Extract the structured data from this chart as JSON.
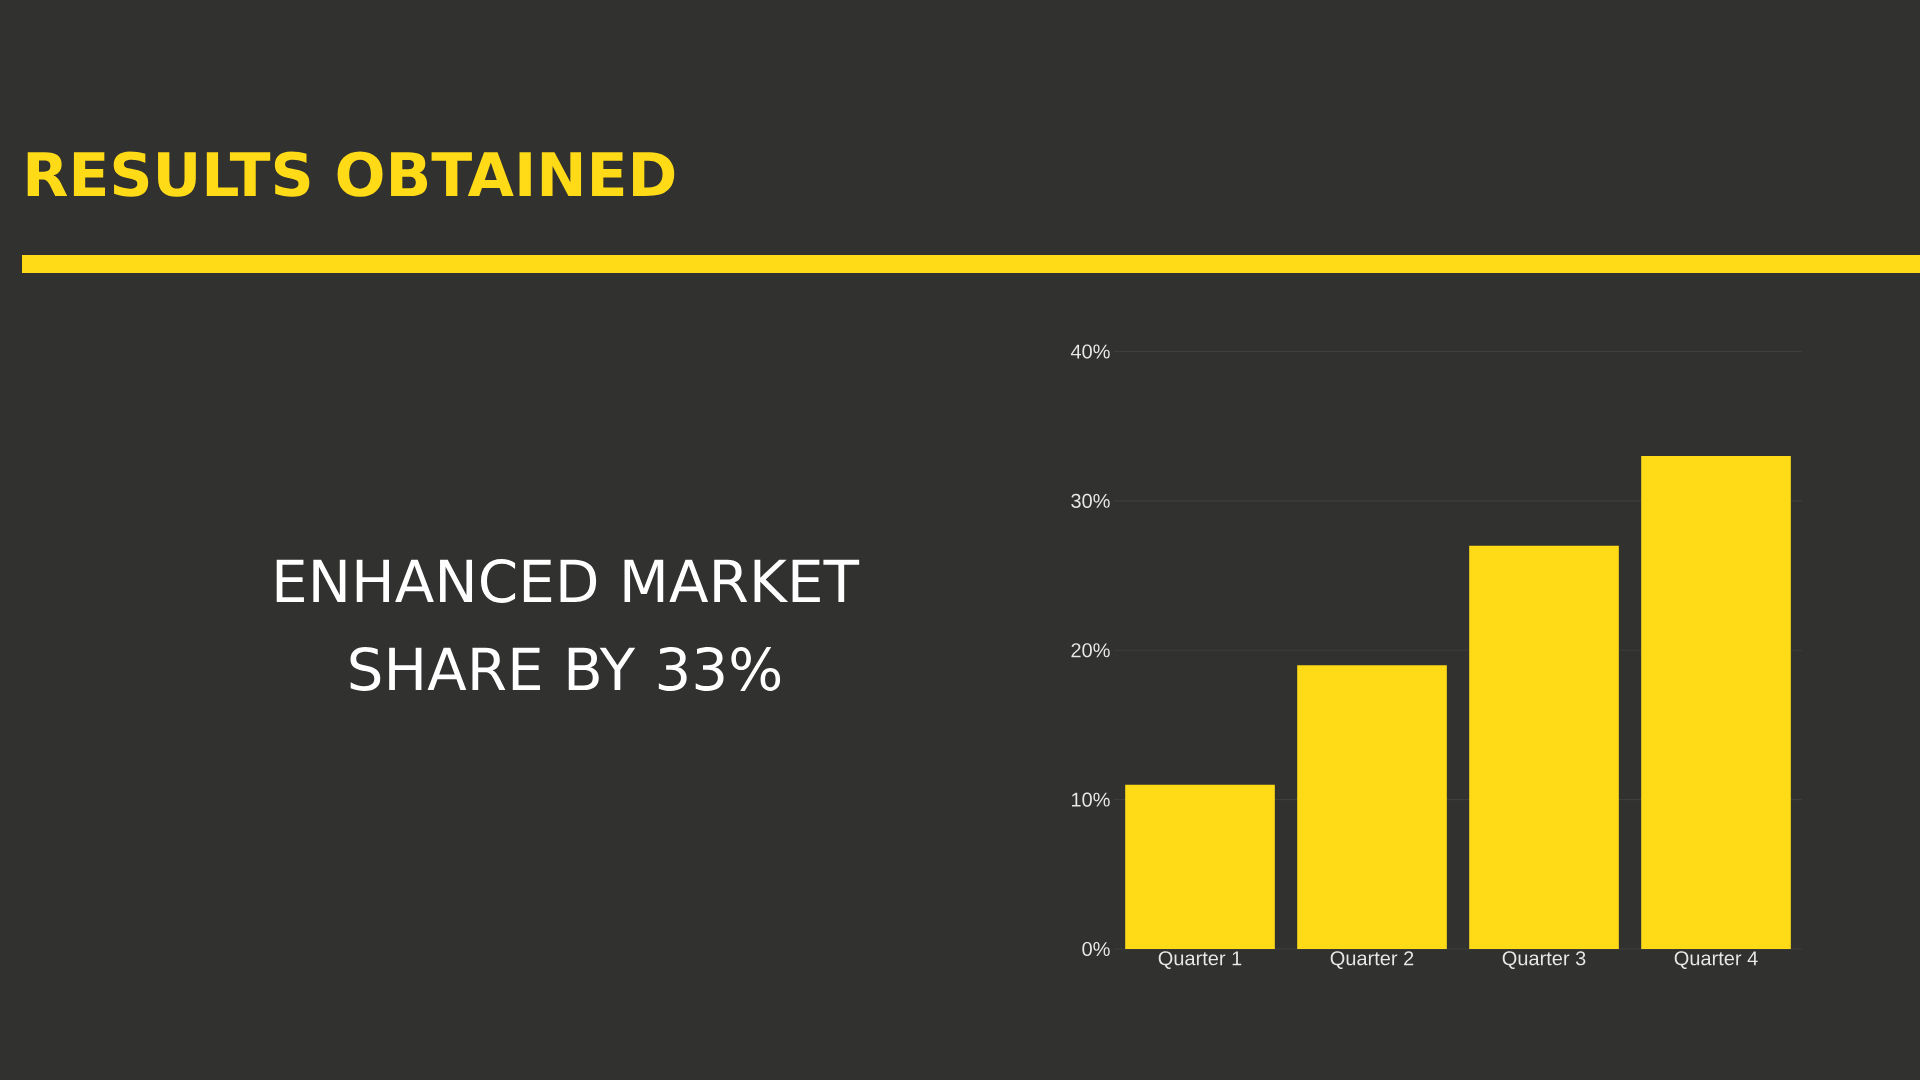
{
  "chart_data": {
    "type": "bar",
    "title": "RESULTS OBTAINED",
    "annotations": [
      "ENHANCED MARKET SHARE BY 33%"
    ],
    "categories": [
      "Quarter 1",
      "Quarter 2",
      "Quarter 3",
      "Quarter 4"
    ],
    "values": [
      11,
      19,
      27,
      33
    ],
    "color": "#ffdb17",
    "ylim": [
      0,
      40
    ],
    "yticks": [
      {
        "value": 0,
        "label": "0%"
      },
      {
        "value": 10,
        "label": "10%"
      },
      {
        "value": 20,
        "label": "20%"
      },
      {
        "value": 30,
        "label": "30%"
      },
      {
        "value": 40,
        "label": "40%"
      }
    ],
    "grid": "y"
  }
}
